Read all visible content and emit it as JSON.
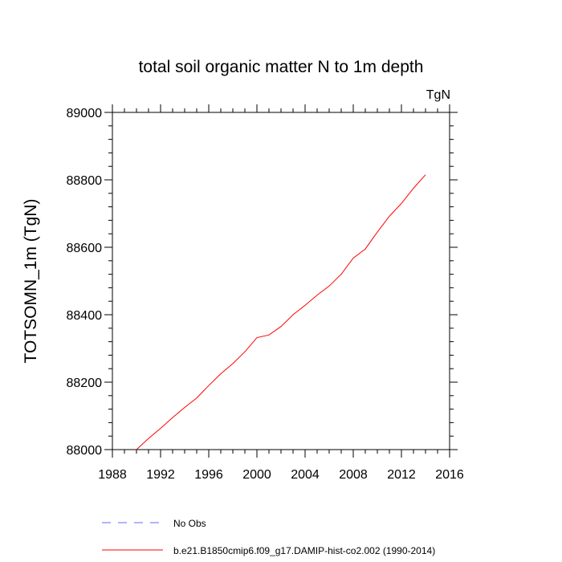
{
  "chart_data": {
    "type": "line",
    "title": "total soil organic matter N to 1m depth",
    "units_label": "TgN",
    "ylabel": "TOTSOMN_1m  (TgN)",
    "xlabel": "",
    "xlim": [
      1988,
      2016
    ],
    "ylim": [
      88000,
      89000
    ],
    "x_ticks": [
      1988,
      1992,
      1996,
      2000,
      2004,
      2008,
      2012,
      2016
    ],
    "y_ticks": [
      88000,
      88200,
      88400,
      88600,
      88800,
      89000
    ],
    "x_tick_labels": [
      "1988",
      "1992",
      "1996",
      "2000",
      "2004",
      "2008",
      "2012",
      "2016"
    ],
    "y_tick_labels": [
      "88000",
      "88200",
      "88400",
      "88600",
      "88800",
      "89000"
    ],
    "grid": false,
    "legend_position": "bottom",
    "series": [
      {
        "name": "No Obs",
        "color": "#6666ff",
        "dash": "dashed",
        "x": [],
        "y": []
      },
      {
        "name": "b.e21.B1850cmip6.f09_g17.DAMIP-hist-co2.002 (1990-2014)",
        "color": "#ff0000",
        "dash": "solid",
        "x": [
          1990,
          1991,
          1992,
          1993,
          1994,
          1995,
          1996,
          1997,
          1998,
          1999,
          2000,
          2001,
          2002,
          2003,
          2004,
          2005,
          2006,
          2007,
          2008,
          2009,
          2010,
          2011,
          2012,
          2013,
          2014
        ],
        "y": [
          88000,
          88033,
          88063,
          88095,
          88125,
          88153,
          88190,
          88225,
          88255,
          88290,
          88332,
          88340,
          88365,
          88400,
          88428,
          88458,
          88485,
          88520,
          88568,
          88595,
          88645,
          88692,
          88730,
          88775,
          88815
        ]
      }
    ]
  }
}
